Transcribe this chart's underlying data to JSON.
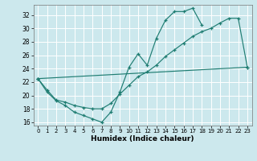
{
  "xlabel": "Humidex (Indice chaleur)",
  "bg_color": "#cce8ed",
  "grid_color": "#ffffff",
  "line_color": "#1f7d72",
  "xlim": [
    -0.5,
    23.5
  ],
  "ylim": [
    15.5,
    33.5
  ],
  "yticks": [
    16,
    18,
    20,
    22,
    24,
    26,
    28,
    30,
    32
  ],
  "xticks": [
    0,
    1,
    2,
    3,
    4,
    5,
    6,
    7,
    8,
    9,
    10,
    11,
    12,
    13,
    14,
    15,
    16,
    17,
    18,
    19,
    20,
    21,
    22,
    23
  ],
  "line1_x": [
    0,
    1,
    2,
    3,
    4,
    5,
    6,
    7,
    8,
    9,
    10,
    11,
    12,
    13,
    14,
    15,
    16,
    17,
    18
  ],
  "line1_y": [
    22.5,
    20.5,
    19.2,
    18.5,
    17.5,
    17.0,
    16.5,
    16.0,
    17.5,
    20.5,
    24.2,
    26.2,
    24.5,
    28.5,
    31.2,
    32.5,
    32.5,
    33.0,
    30.5
  ],
  "line2_x": [
    0,
    1,
    2,
    3,
    4,
    5,
    6,
    7,
    8,
    9,
    10,
    11,
    12,
    13,
    14,
    15,
    16,
    17,
    18,
    19,
    20,
    21,
    22,
    23
  ],
  "line2_y": [
    22.5,
    20.8,
    19.3,
    19.0,
    18.5,
    18.2,
    18.0,
    18.0,
    18.8,
    20.2,
    21.5,
    22.8,
    23.5,
    24.5,
    25.8,
    26.8,
    27.8,
    28.8,
    29.5,
    30.0,
    30.8,
    31.5,
    31.5,
    24.2
  ],
  "line3_x": [
    0,
    23
  ],
  "line3_y": [
    22.5,
    24.2
  ]
}
